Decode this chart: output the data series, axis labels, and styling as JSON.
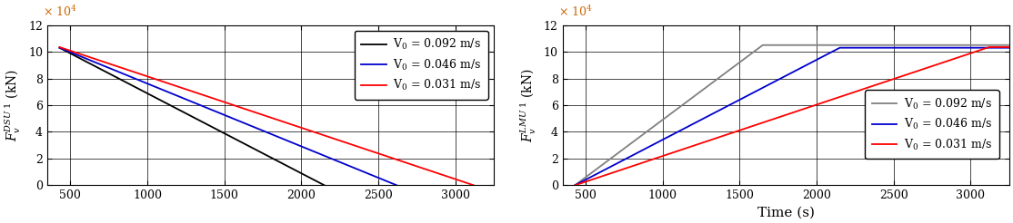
{
  "left": {
    "xlim": [
      350,
      3250
    ],
    "ylim": [
      0,
      12
    ],
    "xticks": [
      500,
      1000,
      1500,
      2000,
      2500,
      3000
    ],
    "yticks": [
      0,
      2,
      4,
      6,
      8,
      10,
      12
    ],
    "lines": [
      {
        "label": "V$_0$ = 0.092 m/s",
        "color": "#000000",
        "x0": 430,
        "y0": 10.3,
        "x1": 2150,
        "y1": 0
      },
      {
        "label": "V$_0$ = 0.046 m/s",
        "color": "#0000CD",
        "x0": 430,
        "y0": 10.3,
        "x1": 2620,
        "y1": 0
      },
      {
        "label": "V$_0$ = 0.031 m/s",
        "color": "#FF0000",
        "x0": 430,
        "y0": 10.35,
        "x1": 3120,
        "y1": 0
      }
    ]
  },
  "right": {
    "xlabel": "Time (s)",
    "xlim": [
      350,
      3250
    ],
    "ylim": [
      0,
      12
    ],
    "xticks": [
      500,
      1000,
      1500,
      2000,
      2500,
      3000
    ],
    "yticks": [
      0,
      2,
      4,
      6,
      8,
      10,
      12
    ],
    "lines": [
      {
        "label": "V$_0$ = 0.092 m/s",
        "color": "#808080",
        "x_rise_start": 430,
        "x_rise_end": 1650,
        "y_max": 10.5
      },
      {
        "label": "V$_0$ = 0.046 m/s",
        "color": "#0000CD",
        "x_rise_start": 430,
        "x_rise_end": 2150,
        "y_max": 10.3
      },
      {
        "label": "V$_0$ = 0.031 m/s",
        "color": "#FF0000",
        "x_rise_start": 430,
        "x_rise_end": 3120,
        "y_max": 10.35
      }
    ]
  },
  "fig_width": 11.14,
  "fig_height": 2.46,
  "dpi": 100,
  "scale_color": "#CC6600",
  "tick_labelsize": 9,
  "legend_fontsize": 9
}
